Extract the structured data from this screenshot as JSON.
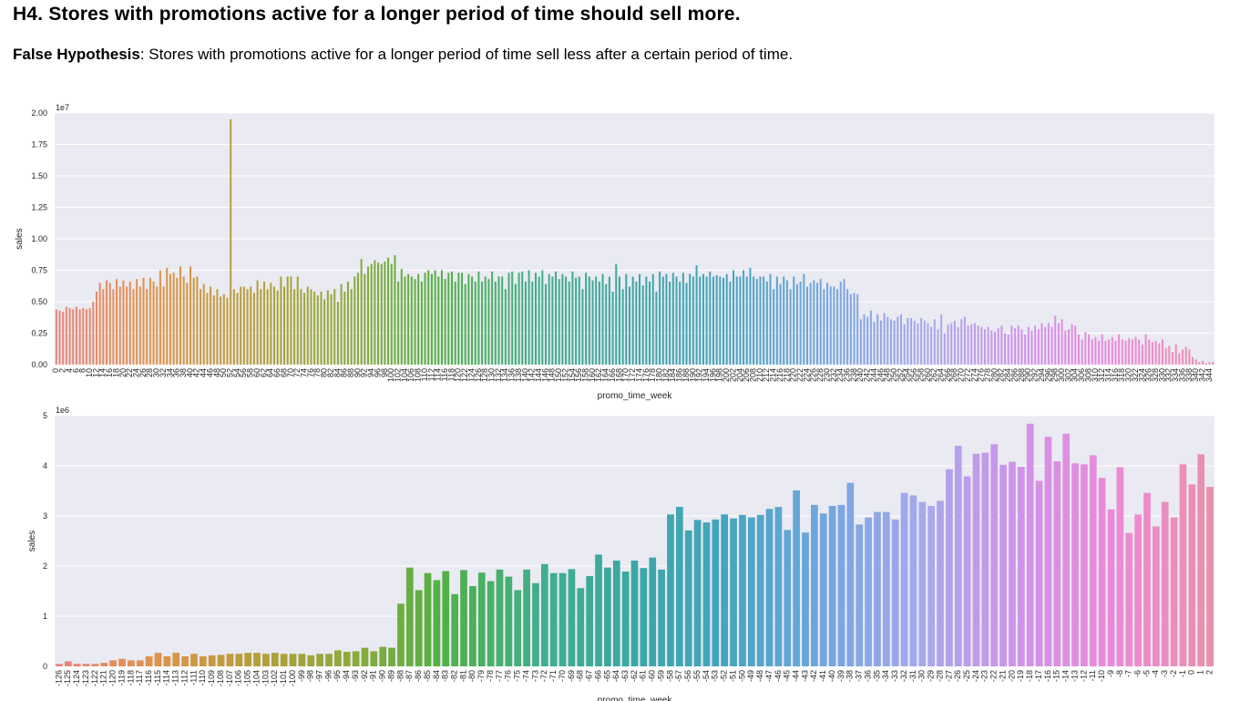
{
  "header": {
    "title": "H4. Stores with promotions active for a longer period of time should sell more.",
    "subtitle_bold": "False Hypothesis",
    "subtitle_rest": ": Stores with promotions active for a longer period of time sell less after a certain period of time."
  },
  "chart_data": [
    {
      "type": "bar",
      "xlabel": "promo_time_week",
      "ylabel": "sales",
      "scale_label": "1e7",
      "ylim": [
        0,
        2.0
      ],
      "yticks": [
        "0.00",
        "0.25",
        "0.50",
        "0.75",
        "1.00",
        "1.25",
        "1.50",
        "1.75",
        "2.00"
      ],
      "x_first": 0,
      "x_last": 313,
      "grid": true,
      "legend": "none",
      "values": [
        0.44,
        0.43,
        0.42,
        0.46,
        0.45,
        0.44,
        0.46,
        0.44,
        0.45,
        0.44,
        0.45,
        0.5,
        0.58,
        0.65,
        0.6,
        0.67,
        0.65,
        0.6,
        0.68,
        0.62,
        0.67,
        0.62,
        0.66,
        0.6,
        0.68,
        0.62,
        0.69,
        0.6,
        0.69,
        0.66,
        0.62,
        0.75,
        0.62,
        0.77,
        0.72,
        0.73,
        0.69,
        0.78,
        0.7,
        0.65,
        0.78,
        0.69,
        0.7,
        0.6,
        0.64,
        0.57,
        0.62,
        0.55,
        0.6,
        0.54,
        0.56,
        0.53,
        1.95,
        0.6,
        0.57,
        0.62,
        0.62,
        0.6,
        0.62,
        0.57,
        0.67,
        0.6,
        0.66,
        0.6,
        0.65,
        0.62,
        0.59,
        0.7,
        0.62,
        0.7,
        0.7,
        0.6,
        0.7,
        0.6,
        0.57,
        0.62,
        0.6,
        0.58,
        0.55,
        0.58,
        0.52,
        0.59,
        0.56,
        0.6,
        0.5,
        0.64,
        0.58,
        0.66,
        0.6,
        0.7,
        0.73,
        0.84,
        0.72,
        0.78,
        0.8,
        0.83,
        0.81,
        0.8,
        0.82,
        0.85,
        0.8,
        0.87,
        0.66,
        0.76,
        0.7,
        0.72,
        0.7,
        0.68,
        0.72,
        0.66,
        0.73,
        0.75,
        0.72,
        0.75,
        0.7,
        0.75,
        0.68,
        0.73,
        0.74,
        0.66,
        0.73,
        0.73,
        0.64,
        0.72,
        0.7,
        0.66,
        0.74,
        0.66,
        0.7,
        0.68,
        0.74,
        0.66,
        0.7,
        0.7,
        0.6,
        0.73,
        0.74,
        0.64,
        0.73,
        0.74,
        0.66,
        0.75,
        0.66,
        0.73,
        0.7,
        0.75,
        0.64,
        0.72,
        0.7,
        0.74,
        0.68,
        0.72,
        0.7,
        0.66,
        0.74,
        0.69,
        0.7,
        0.6,
        0.73,
        0.7,
        0.67,
        0.7,
        0.66,
        0.72,
        0.64,
        0.7,
        0.58,
        0.8,
        0.7,
        0.6,
        0.72,
        0.62,
        0.7,
        0.66,
        0.72,
        0.63,
        0.7,
        0.66,
        0.72,
        0.58,
        0.74,
        0.7,
        0.72,
        0.66,
        0.73,
        0.7,
        0.66,
        0.73,
        0.65,
        0.72,
        0.7,
        0.79,
        0.7,
        0.72,
        0.7,
        0.74,
        0.7,
        0.71,
        0.7,
        0.69,
        0.72,
        0.66,
        0.75,
        0.7,
        0.7,
        0.75,
        0.7,
        0.77,
        0.7,
        0.68,
        0.7,
        0.7,
        0.66,
        0.72,
        0.6,
        0.7,
        0.64,
        0.7,
        0.67,
        0.6,
        0.7,
        0.64,
        0.66,
        0.72,
        0.62,
        0.65,
        0.67,
        0.65,
        0.68,
        0.6,
        0.65,
        0.62,
        0.62,
        0.6,
        0.66,
        0.68,
        0.6,
        0.56,
        0.57,
        0.56,
        0.36,
        0.4,
        0.38,
        0.43,
        0.34,
        0.4,
        0.35,
        0.41,
        0.38,
        0.36,
        0.35,
        0.38,
        0.4,
        0.32,
        0.37,
        0.37,
        0.35,
        0.33,
        0.37,
        0.35,
        0.33,
        0.3,
        0.36,
        0.28,
        0.4,
        0.25,
        0.32,
        0.33,
        0.35,
        0.3,
        0.36,
        0.38,
        0.31,
        0.32,
        0.33,
        0.31,
        0.3,
        0.28,
        0.3,
        0.27,
        0.26,
        0.29,
        0.31,
        0.25,
        0.24,
        0.31,
        0.29,
        0.31,
        0.28,
        0.24,
        0.3,
        0.27,
        0.31,
        0.28,
        0.33,
        0.3,
        0.33,
        0.3,
        0.39,
        0.33,
        0.36,
        0.27,
        0.28,
        0.32,
        0.31,
        0.24,
        0.2,
        0.26,
        0.24,
        0.2,
        0.22,
        0.19,
        0.24,
        0.19,
        0.2,
        0.22,
        0.19,
        0.24,
        0.2,
        0.19,
        0.21,
        0.2,
        0.22,
        0.2,
        0.16,
        0.24,
        0.2,
        0.18,
        0.19,
        0.17,
        0.2,
        0.13,
        0.15,
        0.1,
        0.16,
        0.09,
        0.12,
        0.14,
        0.12,
        0.06,
        0.04,
        0.02,
        0.03,
        0.01,
        0.02,
        0.02
      ]
    },
    {
      "type": "bar",
      "xlabel": "promo_time_week",
      "ylabel": "sales",
      "scale_label": "1e6",
      "ylim": [
        0,
        5
      ],
      "yticks": [
        "0",
        "1",
        "2",
        "3",
        "4",
        "5"
      ],
      "x_first": -126,
      "x_last": -1,
      "grid": true,
      "legend": "none",
      "values": [
        0.05,
        0.1,
        0.05,
        0.05,
        0.05,
        0.07,
        0.12,
        0.15,
        0.12,
        0.12,
        0.2,
        0.27,
        0.2,
        0.27,
        0.2,
        0.25,
        0.2,
        0.22,
        0.23,
        0.25,
        0.25,
        0.27,
        0.27,
        0.25,
        0.27,
        0.25,
        0.25,
        0.25,
        0.22,
        0.25,
        0.25,
        0.32,
        0.29,
        0.3,
        0.37,
        0.3,
        0.39,
        0.37,
        1.25,
        1.97,
        1.52,
        1.86,
        1.72,
        1.9,
        1.44,
        1.92,
        1.6,
        1.87,
        1.7,
        1.93,
        1.79,
        1.52,
        1.93,
        1.66,
        2.04,
        1.86,
        1.86,
        1.94,
        1.56,
        1.8,
        2.23,
        1.97,
        2.11,
        1.89,
        2.11,
        1.96,
        2.17,
        1.93,
        3.03,
        3.18,
        2.71,
        2.92,
        2.87,
        2.93,
        3.03,
        2.95,
        3.02,
        2.97,
        3.02,
        3.14,
        3.18,
        2.72,
        3.51,
        2.67,
        3.22,
        3.05,
        3.2,
        3.22,
        3.66,
        2.83,
        2.97,
        3.08,
        3.08,
        2.93,
        3.46,
        3.41,
        3.28,
        3.2,
        3.3,
        3.93,
        4.4,
        3.79,
        4.24,
        4.26,
        4.43,
        4.02,
        4.08,
        3.98,
        4.84,
        3.7,
        4.58,
        4.09,
        4.64,
        4.05,
        4.03,
        4.21,
        3.76,
        3.13,
        3.97,
        2.66,
        3.03,
        3.46,
        2.79,
        3.28,
        2.97,
        4.03,
        3.63,
        4.23,
        3.58
      ]
    }
  ]
}
